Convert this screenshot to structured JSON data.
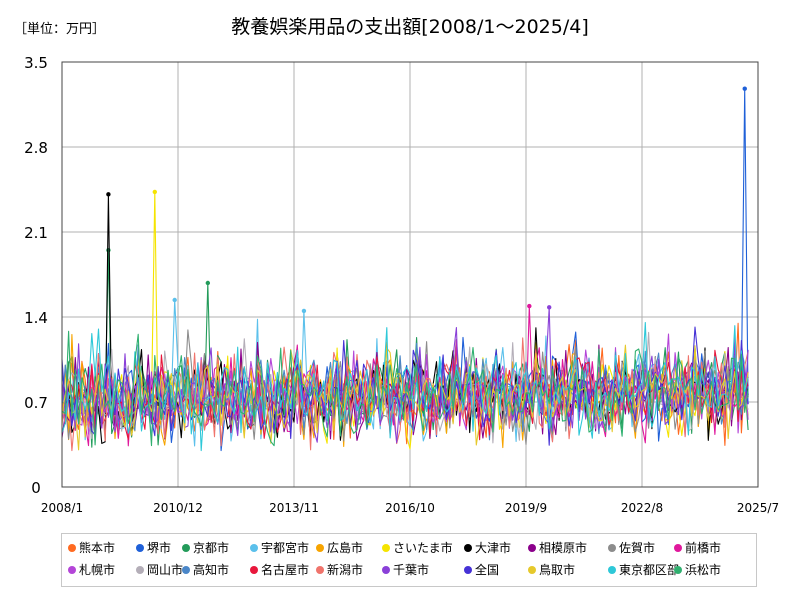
{
  "unit_label": "［単位：万円］",
  "chart_data": {
    "type": "line",
    "title": "教養娯楽用品の支出額[2008/1～2025/4]",
    "unit": "［単位：万円］",
    "xlabel": "",
    "ylabel": "",
    "x_start": "2008/1",
    "x_end": "2025/7",
    "last_data_month": "2025/4",
    "x_ticks": [
      "2008/1",
      "2010/12",
      "2013/11",
      "2016/10",
      "2019/9",
      "2022/8",
      "2025/7"
    ],
    "y_ticks": [
      "0",
      "0.7",
      "1.4",
      "2.1",
      "2.8",
      "3.5"
    ],
    "ylim": [
      0,
      3.5
    ],
    "grid": true,
    "legend_position": "bottom",
    "typical_range": [
      0.3,
      1.5
    ],
    "baseline_mean": 0.68,
    "series": [
      {
        "name": "熊本市",
        "color": "#ff6a21",
        "peaks": []
      },
      {
        "name": "堺市",
        "color": "#1f60d8",
        "peaks": [
          {
            "date": "2025/3",
            "value": 3.28
          }
        ]
      },
      {
        "name": "京都市",
        "color": "#239b5a",
        "peaks": [
          {
            "date": "2009/3",
            "value": 1.95
          },
          {
            "date": "2011/9",
            "value": 1.68
          }
        ]
      },
      {
        "name": "宇都宮市",
        "color": "#5bc0eb",
        "peaks": [
          {
            "date": "2010/11",
            "value": 1.54
          },
          {
            "date": "2014/2",
            "value": 1.45
          }
        ]
      },
      {
        "name": "広島市",
        "color": "#f7a400",
        "peaks": []
      },
      {
        "name": "さいたま市",
        "color": "#f5e400",
        "peaks": [
          {
            "date": "2010/5",
            "value": 2.43
          }
        ]
      },
      {
        "name": "大津市",
        "color": "#000000",
        "peaks": [
          {
            "date": "2009/3",
            "value": 2.41
          }
        ]
      },
      {
        "name": "相模原市",
        "color": "#8b008b",
        "peaks": []
      },
      {
        "name": "佐賀市",
        "color": "#8c8c8c",
        "peaks": []
      },
      {
        "name": "前橋市",
        "color": "#e0189c",
        "peaks": [
          {
            "date": "2019/10",
            "value": 1.49
          }
        ]
      },
      {
        "name": "札幌市",
        "color": "#b445d8",
        "peaks": []
      },
      {
        "name": "岡山市",
        "color": "#b4aeb8",
        "peaks": []
      },
      {
        "name": "高知市",
        "color": "#4a86c8",
        "peaks": []
      },
      {
        "name": "名古屋市",
        "color": "#e8173c",
        "peaks": []
      },
      {
        "name": "新潟市",
        "color": "#f0746c",
        "peaks": []
      },
      {
        "name": "千葉市",
        "color": "#8a40d8",
        "peaks": [
          {
            "date": "2020/4",
            "value": 1.48
          }
        ]
      },
      {
        "name": "全国",
        "color": "#4632d6",
        "peaks": []
      },
      {
        "name": "鳥取市",
        "color": "#e6c92c",
        "peaks": []
      },
      {
        "name": "東京都区部",
        "color": "#2ec8d8",
        "peaks": []
      },
      {
        "name": "浜松市",
        "color": "#30b070",
        "peaks": []
      }
    ]
  }
}
